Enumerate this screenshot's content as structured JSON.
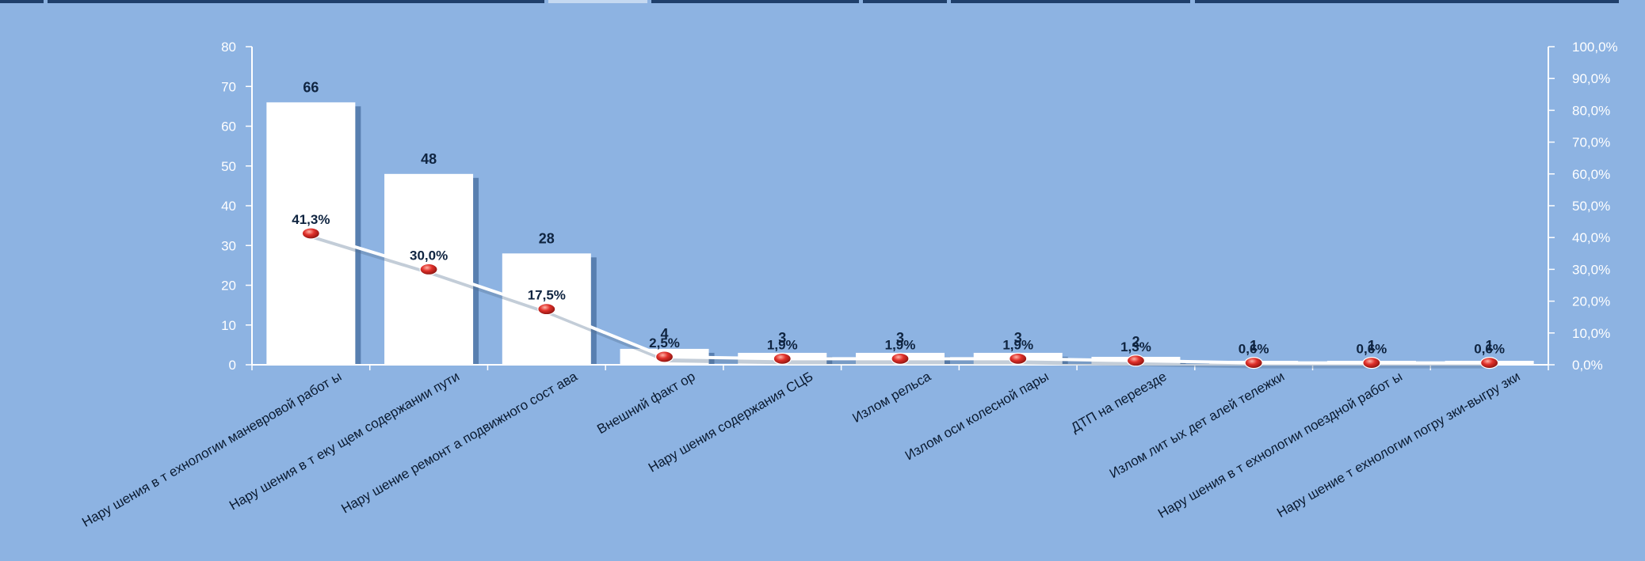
{
  "chart_data": {
    "type": "bar",
    "categories": [
      "Нарушения в технологии маневровой работы",
      "Нарушения в текущем содержании пути",
      "Нарушение ремонта подвижного состава",
      "Внешний фактор",
      "Нарушения содержания СЦБ",
      "Излом рельса",
      "Излом оси колесной пары",
      "ДТП на переезде",
      "Излом литых деталей тележки",
      "Нарушения в технологии поездной работы",
      "Нарушение технологии погрузки-выгрузки"
    ],
    "category_display": [
      "Нару шения в т ехнологии маневровой  работ ы",
      "Нару шения в т еку щем содержании пути",
      "Нару шение ремонт а подвижного сост ава",
      "Внешний факт ор",
      "Нару шения содержания  СЦБ",
      "Излом рельса",
      "Излом оси колесной  пары",
      "ДТП  на переезде",
      "Излом лит ых дет алей тележки",
      "Нару шения в т ехнологии поездной работ ы",
      "Нару шение т ехнологии погру зки-выгру зки"
    ],
    "series": [
      {
        "type": "bar",
        "values": [
          66,
          48,
          28,
          4,
          3,
          3,
          3,
          2,
          1,
          1,
          1
        ],
        "labels": [
          "66",
          "48",
          "28",
          "4",
          "3",
          "3",
          "3",
          "2",
          "1",
          "1",
          "1"
        ],
        "color": "#ffffff"
      },
      {
        "type": "line",
        "axis": "secondary",
        "values": [
          41.3,
          30.0,
          17.5,
          2.5,
          1.9,
          1.9,
          1.9,
          1.3,
          0.6,
          0.6,
          0.6
        ],
        "labels": [
          "41,3%",
          "30,0%",
          "17,5%",
          "2,5%",
          "1,9%",
          "1,9%",
          "1,9%",
          "1,3%",
          "0,6%",
          "0,6%",
          "0,6%"
        ],
        "color": "#ffffff",
        "marker_color": "#e0302a"
      }
    ],
    "ylim": [
      0,
      80
    ],
    "yticks": [
      "0",
      "10",
      "20",
      "30",
      "40",
      "50",
      "60",
      "70",
      "80"
    ],
    "y2lim": [
      0,
      100
    ],
    "y2ticks": [
      "0,0%",
      "10,0%",
      "20,0%",
      "30,0%",
      "40,0%",
      "50,0%",
      "60,0%",
      "70,0%",
      "80,0%",
      "90,0%",
      "100,0%"
    ],
    "grid": false,
    "legend": "none",
    "colors": {
      "background": "#8db3e2",
      "axis": "#ffffff",
      "label": "#0f2440",
      "bar_shadow": "#2e5486"
    }
  }
}
